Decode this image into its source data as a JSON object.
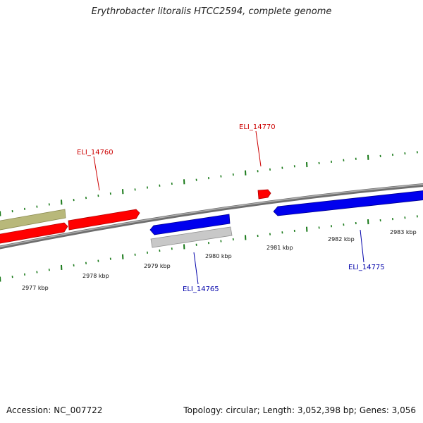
{
  "title": "Erythrobacter litoralis HTCC2594, complete genome",
  "footer": {
    "accession": "Accession: NC_007722",
    "summary": "Topology: circular; Length: 3,052,398 bp; Genes: 3,056"
  },
  "colors": {
    "forward_gene": "#ff0000",
    "reverse_gene": "#0000ee",
    "olive_feature": "#b8b87a",
    "gray_feature": "#c0c0c0",
    "backbone": "#8c8c8c",
    "tick": "#1a7a1a",
    "label_red": "#cc0000",
    "label_blue": "#0000aa"
  },
  "scale_labels": [
    "2977 kbp",
    "2978 kbp",
    "2979 kbp",
    "2980 kbp",
    "2981 kbp",
    "2982 kbp",
    "2983 kbp"
  ],
  "gene_labels": [
    {
      "text": "ELI_14760",
      "strand": "forward"
    },
    {
      "text": "ELI_14770",
      "strand": "forward"
    },
    {
      "text": "ELI_14765",
      "strand": "reverse"
    },
    {
      "text": "ELI_14775",
      "strand": "reverse"
    }
  ]
}
